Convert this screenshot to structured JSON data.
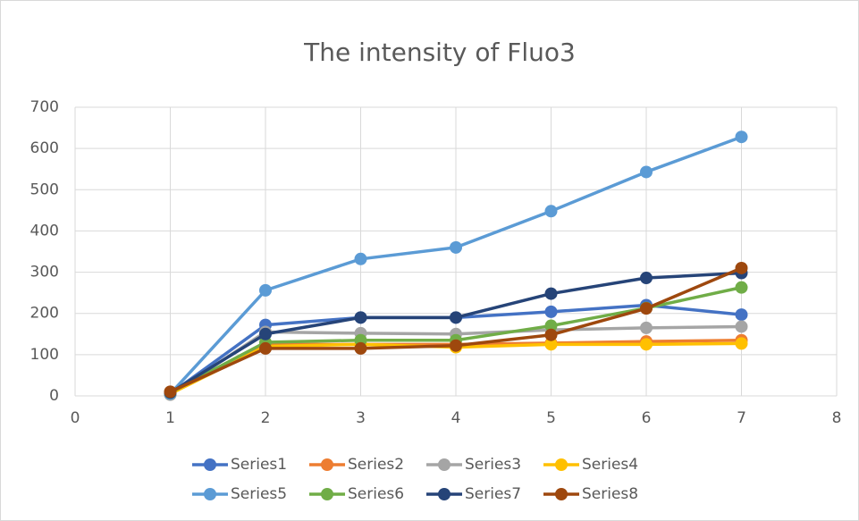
{
  "chart_data": {
    "type": "line",
    "title": "The intensity of Fluo3",
    "x": [
      1,
      2,
      3,
      4,
      5,
      6,
      7
    ],
    "xlim": [
      0,
      8
    ],
    "xticks": [
      0,
      1,
      2,
      3,
      4,
      5,
      6,
      7,
      8
    ],
    "ylim": [
      0,
      700
    ],
    "yticks": [
      0,
      100,
      200,
      300,
      400,
      500,
      600,
      700
    ],
    "grid": true,
    "legend": "bottom",
    "series": [
      {
        "name": "Series1",
        "color": "#4472c4",
        "values": [
          5,
          172,
          190,
          190,
          204,
          220,
          197
        ]
      },
      {
        "name": "Series2",
        "color": "#ed7d31",
        "values": [
          5,
          125,
          125,
          125,
          128,
          132,
          135
        ]
      },
      {
        "name": "Series3",
        "color": "#a5a5a5",
        "values": [
          3,
          155,
          152,
          150,
          160,
          165,
          168
        ]
      },
      {
        "name": "Series4",
        "color": "#ffc000",
        "values": [
          5,
          120,
          125,
          118,
          125,
          125,
          127
        ]
      },
      {
        "name": "Series5",
        "color": "#5b9bd5",
        "values": [
          5,
          256,
          332,
          360,
          448,
          543,
          628
        ]
      },
      {
        "name": "Series6",
        "color": "#70ad47",
        "values": [
          8,
          130,
          135,
          135,
          170,
          213,
          263
        ]
      },
      {
        "name": "Series7",
        "color": "#264478",
        "values": [
          8,
          150,
          190,
          190,
          248,
          286,
          298
        ]
      },
      {
        "name": "Series8",
        "color": "#9e480e",
        "values": [
          10,
          115,
          115,
          122,
          148,
          212,
          310
        ]
      }
    ]
  }
}
